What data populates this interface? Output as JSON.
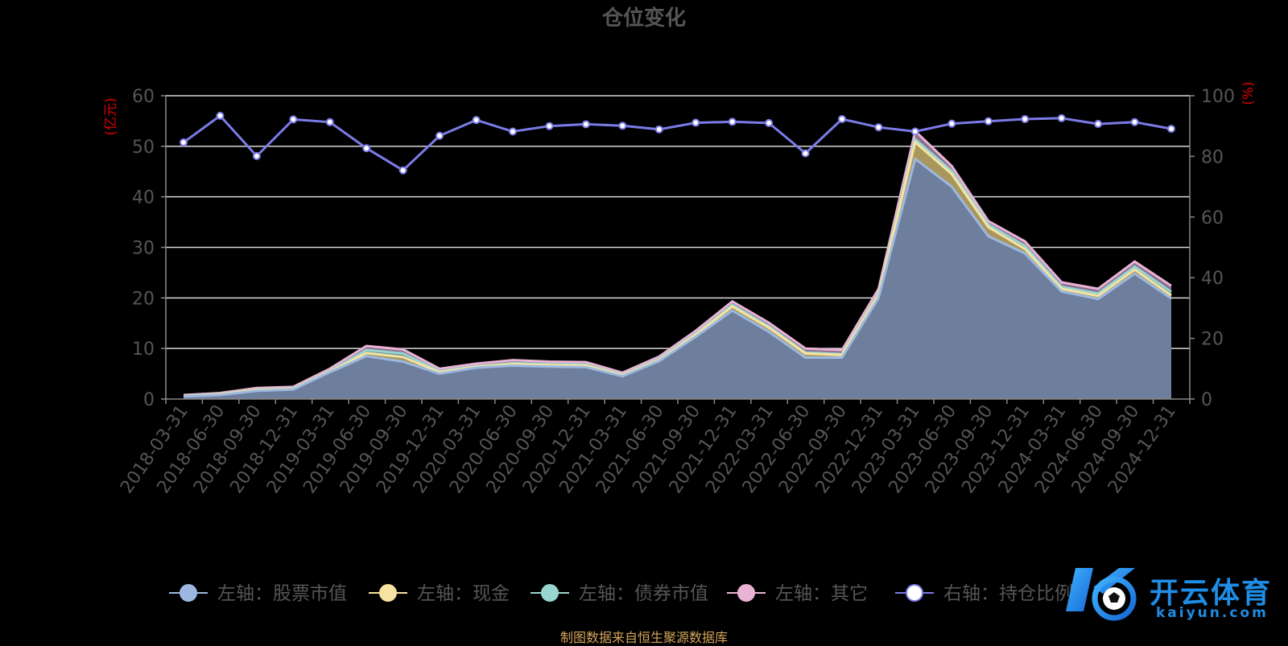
{
  "title": "仓位变化",
  "source_note": "制图数据来自恒生聚源数据库",
  "watermark": {
    "text_cn": "开云体育",
    "text_en": "kaiyun.com"
  },
  "chart_data": {
    "type": "area",
    "x": [
      "2018-03-31",
      "2018-06-30",
      "2018-09-30",
      "2018-12-31",
      "2019-03-31",
      "2019-06-30",
      "2019-09-30",
      "2019-12-31",
      "2020-03-31",
      "2020-06-30",
      "2020-09-30",
      "2020-12-31",
      "2021-03-31",
      "2021-06-30",
      "2021-09-30",
      "2021-12-31",
      "2022-03-31",
      "2022-06-30",
      "2022-09-30",
      "2022-12-31",
      "2023-03-31",
      "2023-06-30",
      "2023-09-30",
      "2023-12-31",
      "2024-03-31",
      "2024-06-30",
      "2024-09-30",
      "2024-12-31"
    ],
    "left_axis": {
      "label": "(亿元)",
      "ylim": [
        0,
        60
      ],
      "ticks": [
        0,
        10,
        20,
        30,
        40,
        50,
        60
      ]
    },
    "right_axis": {
      "label": "(%)",
      "ylim": [
        0,
        100
      ],
      "ticks": [
        0,
        20,
        40,
        60,
        80,
        100
      ]
    },
    "grid": true,
    "legend_position": "bottom",
    "series": [
      {
        "name": "左轴：股票市值",
        "axis": "left",
        "stacked": true,
        "color": "#9db8e0",
        "values": [
          0.5,
          0.8,
          1.6,
          1.9,
          5.3,
          8.5,
          7.4,
          5.0,
          6.2,
          6.6,
          6.4,
          6.3,
          4.5,
          7.5,
          12.3,
          17.5,
          13.3,
          8.2,
          8.2,
          20.0,
          47.5,
          42.0,
          32.2,
          28.8,
          21.3,
          19.8,
          24.8,
          19.9
        ]
      },
      {
        "name": "左轴：现金",
        "axis": "left",
        "stacked": true,
        "color": "#f6e3a1",
        "values": [
          0.05,
          0.1,
          0.2,
          0.1,
          0.1,
          0.6,
          0.9,
          0.3,
          0.2,
          0.3,
          0.3,
          0.3,
          0.2,
          0.2,
          0.4,
          0.8,
          0.8,
          0.8,
          0.5,
          0.6,
          3.3,
          2.5,
          1.8,
          0.9,
          0.5,
          0.6,
          0.8,
          0.6
        ]
      },
      {
        "name": "左轴：债券市值",
        "axis": "left",
        "stacked": true,
        "color": "#98d5d0",
        "values": [
          0.05,
          0.1,
          0.1,
          0.1,
          0.1,
          0.6,
          0.7,
          0.2,
          0.1,
          0.2,
          0.2,
          0.2,
          0.1,
          0.2,
          0.2,
          0.3,
          0.3,
          0.2,
          0.2,
          0.3,
          0.6,
          0.6,
          0.5,
          0.6,
          0.4,
          0.5,
          0.6,
          0.7
        ]
      },
      {
        "name": "左轴：其它",
        "axis": "left",
        "stacked": true,
        "color": "#eab3d6",
        "values": [
          0.2,
          0.2,
          0.3,
          0.3,
          0.5,
          0.8,
          0.8,
          0.5,
          0.5,
          0.6,
          0.5,
          0.5,
          0.4,
          0.5,
          0.6,
          0.7,
          0.7,
          0.8,
          0.8,
          0.9,
          1.6,
          1.0,
          0.7,
          0.9,
          0.9,
          0.9,
          1.0,
          1.2
        ]
      },
      {
        "name": "右轴：持仓比例",
        "axis": "right",
        "type": "line",
        "color": "#7b7be8",
        "values": [
          84.6,
          93.4,
          80.1,
          92.2,
          91.3,
          82.7,
          75.4,
          86.8,
          92.0,
          88.2,
          90.0,
          90.6,
          90.1,
          88.9,
          91.1,
          91.4,
          91.0,
          81.0,
          92.3,
          89.6,
          88.2,
          90.8,
          91.6,
          92.3,
          92.6,
          90.7,
          91.3,
          89.1
        ]
      }
    ]
  }
}
